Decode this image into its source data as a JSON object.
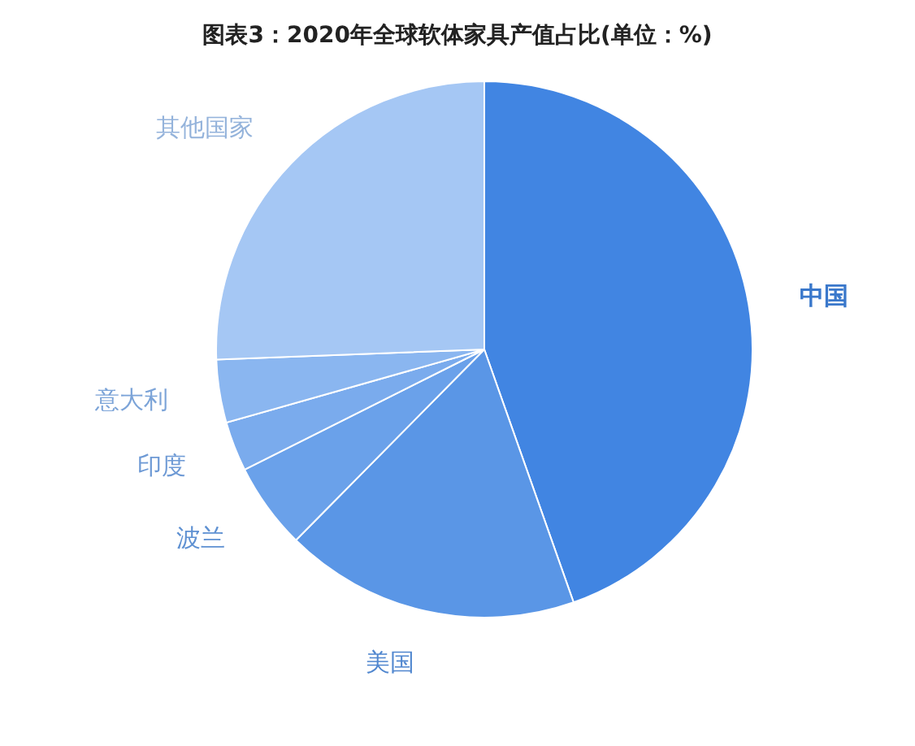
{
  "chart_data": {
    "type": "pie",
    "title": "图表3：2020年全球软体家具产值占比(单位：%)",
    "categories": [
      "中国",
      "美国",
      "波兰",
      "印度",
      "意大利",
      "其他国家"
    ],
    "values": [
      44.6,
      17.8,
      5.2,
      3.0,
      3.8,
      25.6
    ],
    "colors": [
      "#4185e2",
      "#5a96e6",
      "#6aa1ea",
      "#7aabed",
      "#8ab6f0",
      "#a5c7f4"
    ]
  }
}
